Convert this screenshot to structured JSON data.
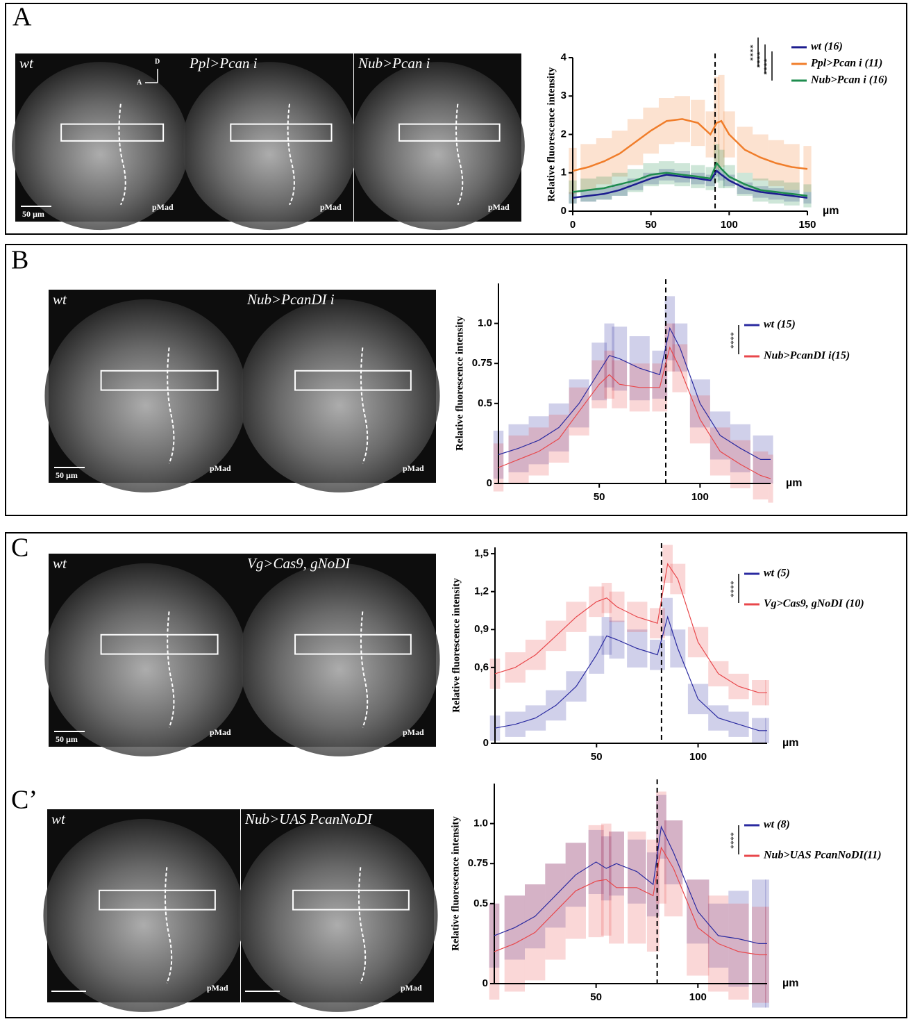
{
  "panels": [
    {
      "label": "A",
      "images": [
        {
          "label": "wt",
          "stain": "pMad",
          "scale": "50 µm"
        },
        {
          "label": "Ppl>Pcan i",
          "stain": "pMad"
        },
        {
          "label": "Nub>Pcan i",
          "stain": "pMad"
        }
      ],
      "axes": [
        "D",
        "A"
      ]
    },
    {
      "label": "B",
      "images": [
        {
          "label": "wt",
          "stain": "pMad",
          "scale": "50 µm"
        },
        {
          "label": "Nub>PcanDI i",
          "stain": "pMad"
        }
      ]
    },
    {
      "label": "C",
      "images": [
        {
          "label": "wt",
          "stain": "pMad",
          "scale": "50 µm"
        },
        {
          "label": "Vg>Cas9, gNoDI",
          "stain": "pMad"
        }
      ]
    },
    {
      "label": "C’",
      "images": [
        {
          "label": "wt",
          "stain": "pMad"
        },
        {
          "label": "Nub>UAS PcanNoDI",
          "stain": "pMad"
        }
      ]
    }
  ],
  "chart_data": [
    {
      "type": "line",
      "ylabel": "Relative fluorescence intensity",
      "x_unit": "µm",
      "x": [
        0,
        10,
        20,
        30,
        40,
        50,
        60,
        70,
        80,
        88,
        92,
        95,
        100,
        110,
        120,
        130,
        140,
        150
      ],
      "xlim": [
        0,
        150
      ],
      "xticks": [
        0,
        50,
        100,
        150
      ],
      "ylim": [
        0,
        4
      ],
      "yticks": [
        0,
        1,
        2,
        3,
        4
      ],
      "vline": 91,
      "significance": [
        "****",
        "****",
        "****"
      ],
      "series": [
        {
          "name": "wt (16)",
          "color": "#1c1c8f",
          "values": [
            0.35,
            0.4,
            0.45,
            0.55,
            0.7,
            0.85,
            0.95,
            0.9,
            0.85,
            0.8,
            1.05,
            0.95,
            0.8,
            0.6,
            0.5,
            0.45,
            0.4,
            0.35
          ],
          "errors": [
            0.15,
            0.15,
            0.15,
            0.15,
            0.15,
            0.15,
            0.15,
            0.15,
            0.15,
            0.15,
            0.15,
            0.15,
            0.15,
            0.15,
            0.15,
            0.15,
            0.15,
            0.15
          ]
        },
        {
          "name": "Ppl>Pcan i (11)",
          "color": "#f07d2a",
          "values": [
            1.05,
            1.15,
            1.3,
            1.5,
            1.8,
            2.1,
            2.35,
            2.4,
            2.3,
            2.0,
            2.3,
            2.35,
            2.0,
            1.6,
            1.4,
            1.25,
            1.15,
            1.1
          ],
          "errors": [
            0.6,
            0.6,
            0.6,
            0.6,
            0.6,
            0.6,
            0.6,
            0.6,
            0.6,
            0.6,
            1.2,
            1.2,
            0.6,
            0.6,
            0.6,
            0.6,
            0.6,
            0.6
          ]
        },
        {
          "name": "Nub>Pcan i (16)",
          "color": "#1e8c4e",
          "values": [
            0.5,
            0.55,
            0.6,
            0.7,
            0.8,
            0.95,
            1.0,
            0.95,
            0.9,
            0.85,
            1.25,
            1.1,
            0.9,
            0.7,
            0.55,
            0.5,
            0.45,
            0.4
          ],
          "errors": [
            0.3,
            0.3,
            0.3,
            0.3,
            0.3,
            0.3,
            0.3,
            0.3,
            0.3,
            0.3,
            0.5,
            0.5,
            0.3,
            0.3,
            0.3,
            0.3,
            0.3,
            0.3
          ]
        }
      ]
    },
    {
      "type": "line",
      "ylabel": "Relative fluorescence intensity",
      "x_unit": "µm",
      "x": [
        0,
        10,
        20,
        30,
        40,
        50,
        55,
        60,
        70,
        80,
        85,
        90,
        100,
        110,
        120,
        130,
        135
      ],
      "xlim": [
        0,
        135
      ],
      "xticks": [
        50,
        100
      ],
      "ylim": [
        0,
        1.25
      ],
      "yticks": [
        0,
        0.5,
        0.75,
        {
          "value": 1,
          "label": "1.0"
        }
      ],
      "vline": 83,
      "significance": [
        "****"
      ],
      "series": [
        {
          "name": "wt (15)",
          "color": "#2a2aa0",
          "values": [
            0.18,
            0.22,
            0.27,
            0.35,
            0.5,
            0.7,
            0.8,
            0.78,
            0.72,
            0.68,
            0.97,
            0.85,
            0.5,
            0.3,
            0.22,
            0.15,
            0.15
          ],
          "errors": [
            0.15,
            0.15,
            0.15,
            0.15,
            0.15,
            0.18,
            0.2,
            0.2,
            0.2,
            0.15,
            0.2,
            0.15,
            0.15,
            0.15,
            0.15,
            0.15,
            0.15
          ]
        },
        {
          "name": "Nub>PcanDI i(15)",
          "color": "#e8474b",
          "values": [
            0.1,
            0.15,
            0.2,
            0.28,
            0.45,
            0.62,
            0.68,
            0.62,
            0.6,
            0.6,
            0.85,
            0.72,
            0.4,
            0.2,
            0.12,
            0.05,
            0.03
          ],
          "errors": [
            0.15,
            0.15,
            0.15,
            0.15,
            0.15,
            0.15,
            0.15,
            0.15,
            0.15,
            0.15,
            0.15,
            0.15,
            0.15,
            0.15,
            0.15,
            0.15,
            0.15
          ]
        }
      ]
    },
    {
      "type": "line",
      "ylabel": "Relative fluorescence intensity",
      "x_unit": "µm",
      "x": [
        0,
        10,
        20,
        30,
        40,
        50,
        55,
        60,
        70,
        80,
        85,
        90,
        100,
        110,
        120,
        130,
        134
      ],
      "xlim": [
        0,
        134
      ],
      "xticks": [
        50,
        100
      ],
      "ylim": [
        0,
        1.55
      ],
      "yticks": [
        0,
        {
          "value": 0.6,
          "label": "0,6"
        },
        {
          "value": 0.9,
          "label": "0,9"
        },
        {
          "value": 1.2,
          "label": "1,2"
        },
        {
          "value": 1.5,
          "label": "1,5"
        }
      ],
      "vline": 82,
      "significance": [
        "****"
      ],
      "series": [
        {
          "name": "wt (5)",
          "color": "#2a2aa0",
          "values": [
            0.12,
            0.15,
            0.2,
            0.3,
            0.45,
            0.7,
            0.85,
            0.82,
            0.75,
            0.7,
            1.0,
            0.75,
            0.35,
            0.2,
            0.15,
            0.1,
            0.1
          ],
          "errors": [
            0.1,
            0.1,
            0.1,
            0.12,
            0.12,
            0.15,
            0.15,
            0.15,
            0.15,
            0.12,
            0.15,
            0.15,
            0.12,
            0.1,
            0.1,
            0.1,
            0.1
          ]
        },
        {
          "name": "Vg>Cas9, gNoDI (10)",
          "color": "#e8474b",
          "values": [
            0.55,
            0.6,
            0.7,
            0.85,
            1.0,
            1.12,
            1.15,
            1.08,
            1.0,
            0.95,
            1.42,
            1.3,
            0.8,
            0.55,
            0.45,
            0.4,
            0.4
          ],
          "errors": [
            0.12,
            0.12,
            0.12,
            0.12,
            0.12,
            0.12,
            0.12,
            0.12,
            0.12,
            0.12,
            0.15,
            0.12,
            0.12,
            0.1,
            0.1,
            0.1,
            0.1
          ]
        }
      ]
    },
    {
      "type": "line",
      "ylabel": "Relative fluorescence intensity",
      "x_unit": "µm",
      "x": [
        0,
        10,
        20,
        30,
        40,
        50,
        55,
        60,
        70,
        78,
        82,
        88,
        100,
        110,
        120,
        130,
        134
      ],
      "xlim": [
        0,
        134
      ],
      "xticks": [
        50,
        100
      ],
      "ylim": [
        0,
        1.25
      ],
      "yticks": [
        0,
        0.5,
        0.75,
        {
          "value": 1,
          "label": "1.0"
        }
      ],
      "vline": 80,
      "significance": [
        "****"
      ],
      "series": [
        {
          "name": "wt (8)",
          "color": "#2a2aa0",
          "values": [
            0.3,
            0.35,
            0.42,
            0.55,
            0.68,
            0.76,
            0.72,
            0.75,
            0.7,
            0.62,
            0.98,
            0.82,
            0.45,
            0.3,
            0.28,
            0.25,
            0.25
          ],
          "errors": [
            0.2,
            0.2,
            0.2,
            0.2,
            0.2,
            0.2,
            0.2,
            0.2,
            0.2,
            0.2,
            0.2,
            0.2,
            0.2,
            0.2,
            0.3,
            0.4,
            0.4
          ]
        },
        {
          "name": "Nub>UAS PcanNoDI(11)",
          "color": "#e8474b",
          "values": [
            0.2,
            0.25,
            0.32,
            0.45,
            0.58,
            0.64,
            0.65,
            0.6,
            0.6,
            0.55,
            0.85,
            0.72,
            0.35,
            0.25,
            0.2,
            0.18,
            0.18
          ],
          "errors": [
            0.3,
            0.3,
            0.3,
            0.3,
            0.3,
            0.35,
            0.35,
            0.35,
            0.35,
            0.35,
            0.35,
            0.3,
            0.3,
            0.3,
            0.3,
            0.3,
            0.3
          ]
        }
      ]
    }
  ]
}
